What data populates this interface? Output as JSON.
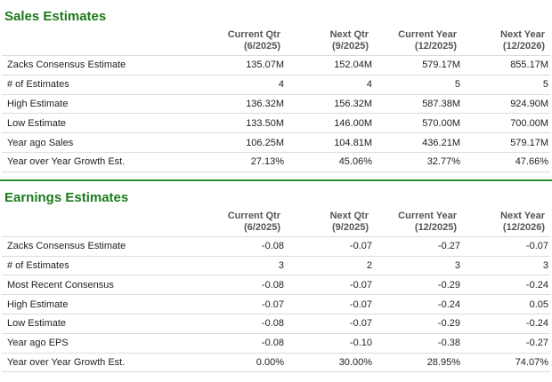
{
  "sales": {
    "title": "Sales Estimates",
    "columns": [
      {
        "line1": "Current Qtr",
        "line2": "(6/2025)"
      },
      {
        "line1": "Next Qtr",
        "line2": "(9/2025)"
      },
      {
        "line1": "Current Year",
        "line2": "(12/2025)"
      },
      {
        "line1": "Next Year",
        "line2": "(12/2026)"
      }
    ],
    "rows": [
      {
        "label": "Zacks Consensus Estimate",
        "values": [
          "135.07M",
          "152.04M",
          "579.17M",
          "855.17M"
        ]
      },
      {
        "label": "# of Estimates",
        "values": [
          "4",
          "4",
          "5",
          "5"
        ]
      },
      {
        "label": "High Estimate",
        "values": [
          "136.32M",
          "156.32M",
          "587.38M",
          "924.90M"
        ]
      },
      {
        "label": "Low Estimate",
        "values": [
          "133.50M",
          "146.00M",
          "570.00M",
          "700.00M"
        ]
      },
      {
        "label": "Year ago Sales",
        "values": [
          "106.25M",
          "104.81M",
          "436.21M",
          "579.17M"
        ]
      },
      {
        "label": "Year over Year Growth Est.",
        "values": [
          "27.13%",
          "45.06%",
          "32.77%",
          "47.66%"
        ]
      }
    ]
  },
  "earnings": {
    "title": "Earnings Estimates",
    "columns": [
      {
        "line1": "Current Qtr",
        "line2": "(6/2025)"
      },
      {
        "line1": "Next Qtr",
        "line2": "(9/2025)"
      },
      {
        "line1": "Current Year",
        "line2": "(12/2025)"
      },
      {
        "line1": "Next Year",
        "line2": "(12/2026)"
      }
    ],
    "rows": [
      {
        "label": "Zacks Consensus Estimate",
        "values": [
          "-0.08",
          "-0.07",
          "-0.27",
          "-0.07"
        ]
      },
      {
        "label": "# of Estimates",
        "values": [
          "3",
          "2",
          "3",
          "3"
        ]
      },
      {
        "label": "Most Recent Consensus",
        "values": [
          "-0.08",
          "-0.07",
          "-0.29",
          "-0.24"
        ]
      },
      {
        "label": "High Estimate",
        "values": [
          "-0.07",
          "-0.07",
          "-0.24",
          "0.05"
        ]
      },
      {
        "label": "Low Estimate",
        "values": [
          "-0.08",
          "-0.07",
          "-0.29",
          "-0.24"
        ]
      },
      {
        "label": "Year ago EPS",
        "values": [
          "-0.08",
          "-0.10",
          "-0.38",
          "-0.27"
        ]
      },
      {
        "label": "Year over Year Growth Est.",
        "values": [
          "0.00%",
          "30.00%",
          "28.95%",
          "74.07%"
        ]
      }
    ]
  },
  "colors": {
    "title_green": "#1b7a1b",
    "divider_green": "#2f8f2f",
    "row_border": "#dcdcdc"
  }
}
